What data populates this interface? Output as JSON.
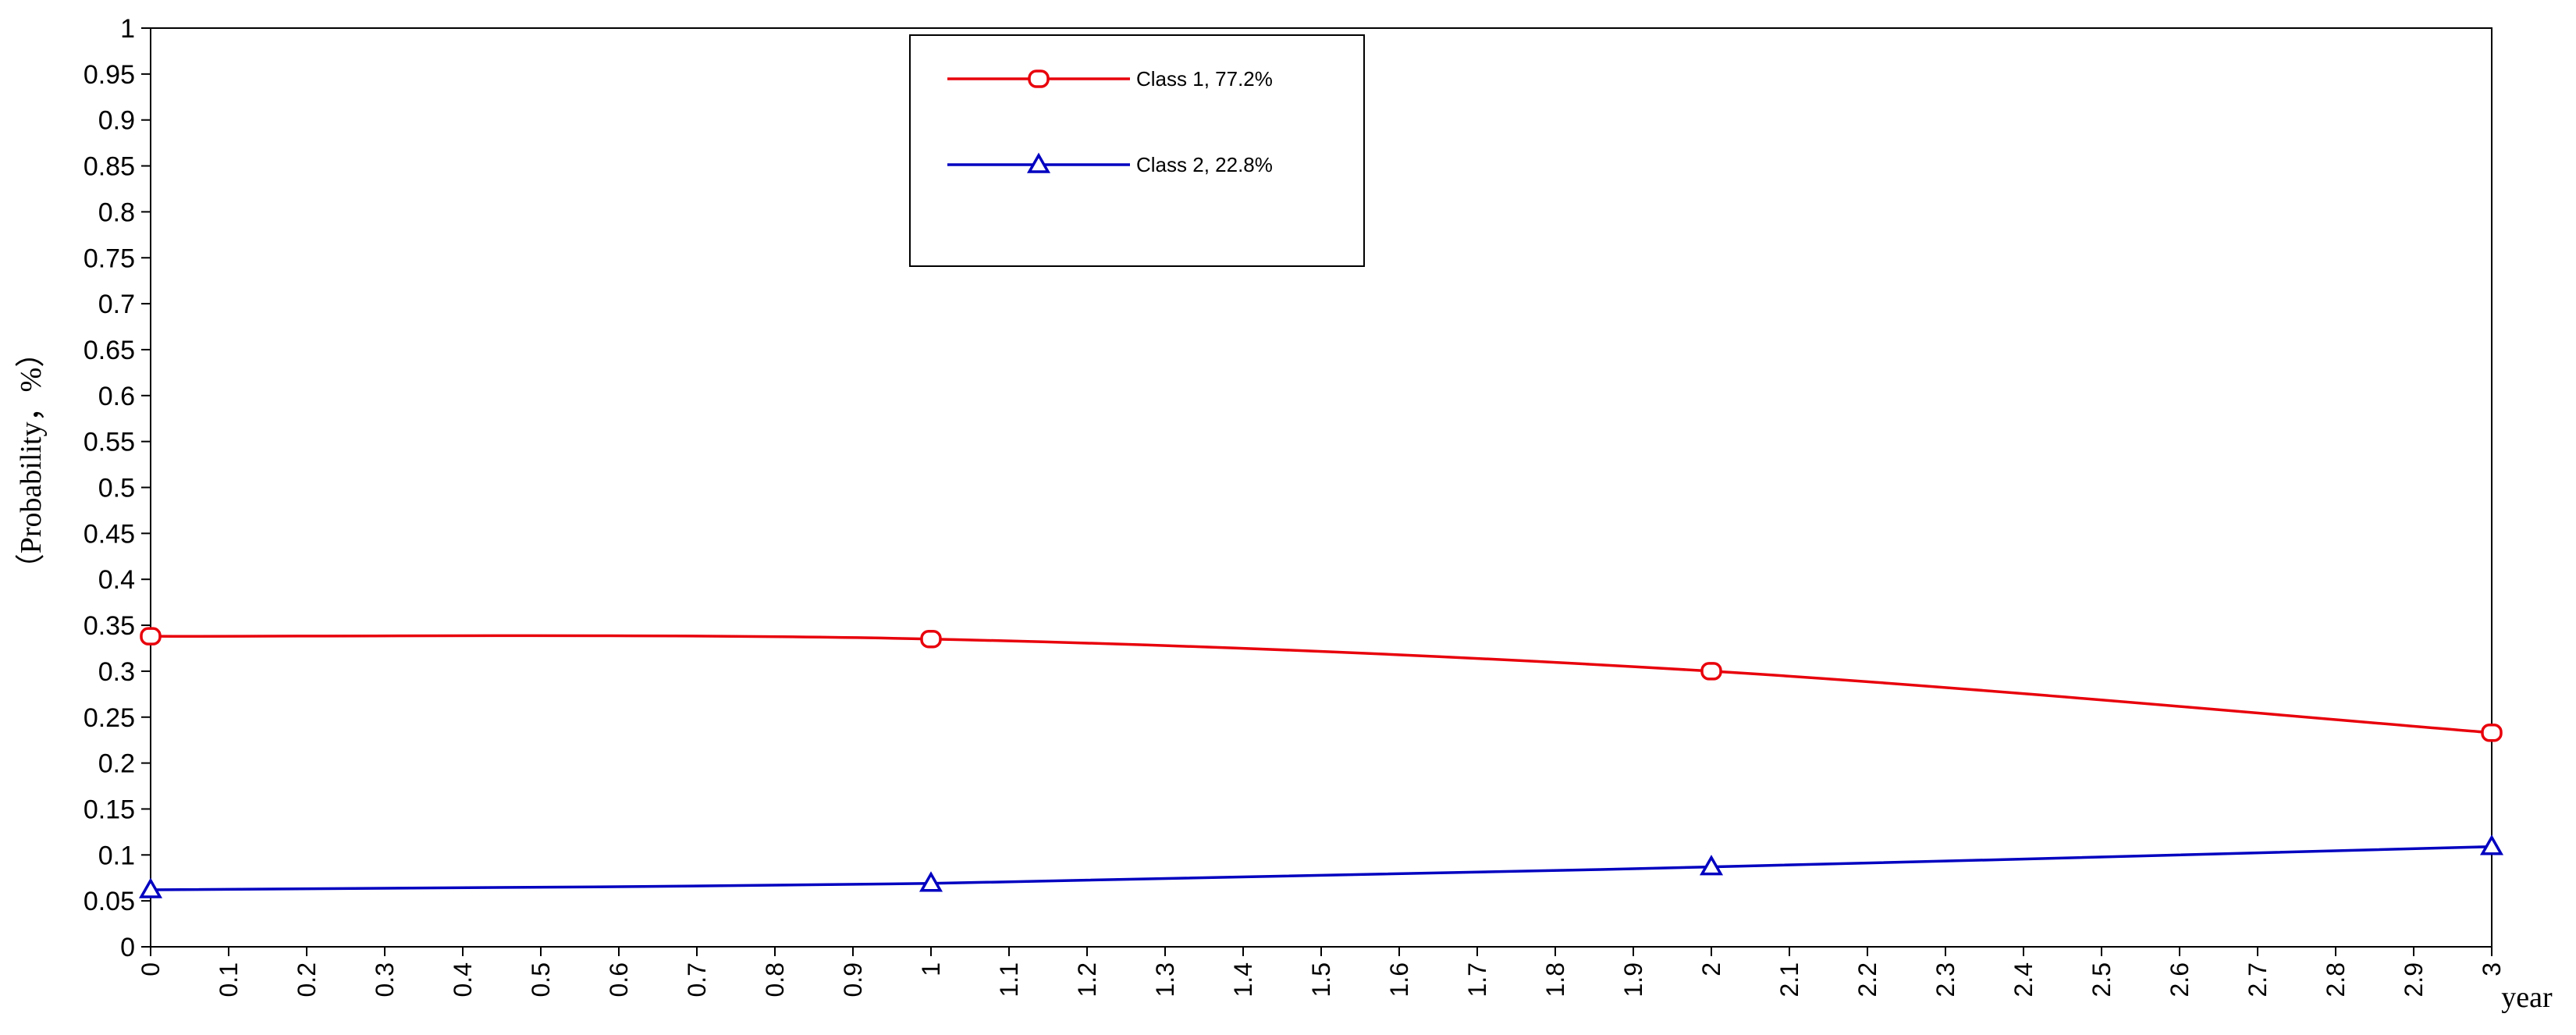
{
  "chart_data": {
    "type": "line",
    "title": "",
    "xlabel": "year",
    "ylabel": "（Probability，%）",
    "xlim": [
      0,
      3
    ],
    "ylim": [
      0,
      1
    ],
    "grid": false,
    "legend_position": "top-center",
    "x_ticks": [
      "0",
      "0.1",
      "0.2",
      "0.3",
      "0.4",
      "0.5",
      "0.6",
      "0.7",
      "0.8",
      "0.9",
      "1",
      "1.1",
      "1.2",
      "1.3",
      "1.4",
      "1.5",
      "1.6",
      "1.7",
      "1.8",
      "1.9",
      "2",
      "2.1",
      "2.2",
      "2.3",
      "2.4",
      "2.5",
      "2.6",
      "2.7",
      "2.8",
      "2.9",
      "3"
    ],
    "y_ticks": [
      "0",
      "0.05",
      "0.1",
      "0.15",
      "0.2",
      "0.25",
      "0.3",
      "0.35",
      "0.4",
      "0.45",
      "0.5",
      "0.55",
      "0.6",
      "0.65",
      "0.7",
      "0.75",
      "0.8",
      "0.85",
      "0.9",
      "0.95",
      "1"
    ],
    "x": [
      0,
      1,
      2,
      3
    ],
    "series": [
      {
        "name": "Class 1, 77.2%",
        "color": "#e8000b",
        "marker": "circle",
        "values": [
          0.338,
          0.335,
          0.3,
          0.233
        ]
      },
      {
        "name": "Class 2, 22.8%",
        "color": "#0000c0",
        "marker": "triangle",
        "values": [
          0.062,
          0.069,
          0.087,
          0.109
        ]
      }
    ]
  }
}
